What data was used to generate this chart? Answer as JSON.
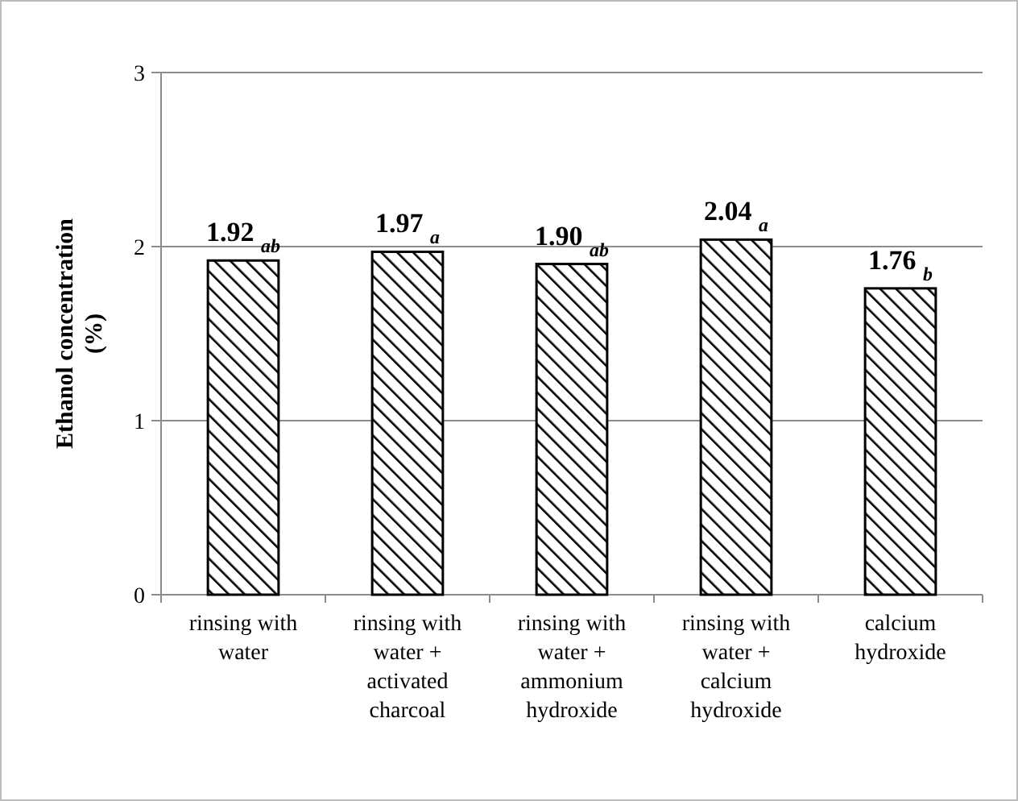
{
  "chart_data": {
    "type": "bar",
    "ylabel": "Ethanol concentration\n(%)",
    "categories": [
      "rinsing with water",
      "rinsing with water + activated charcoal",
      "rinsing with water + ammonium hydroxide",
      "rinsing with water + calcium hydroxide",
      "calcium hydroxide"
    ],
    "values": [
      1.92,
      1.97,
      1.9,
      2.04,
      1.76
    ],
    "value_labels": [
      "1.92 $_{ab}$",
      "1.97 $_{a}$",
      "1.90 $_{ab}$",
      "2.04 $_{a}$",
      "1.76 $_{b}$"
    ],
    "color": "#000000",
    "ylim": [
      0,
      3
    ],
    "yticks": [
      0,
      1,
      2,
      3
    ],
    "grid": "y"
  }
}
